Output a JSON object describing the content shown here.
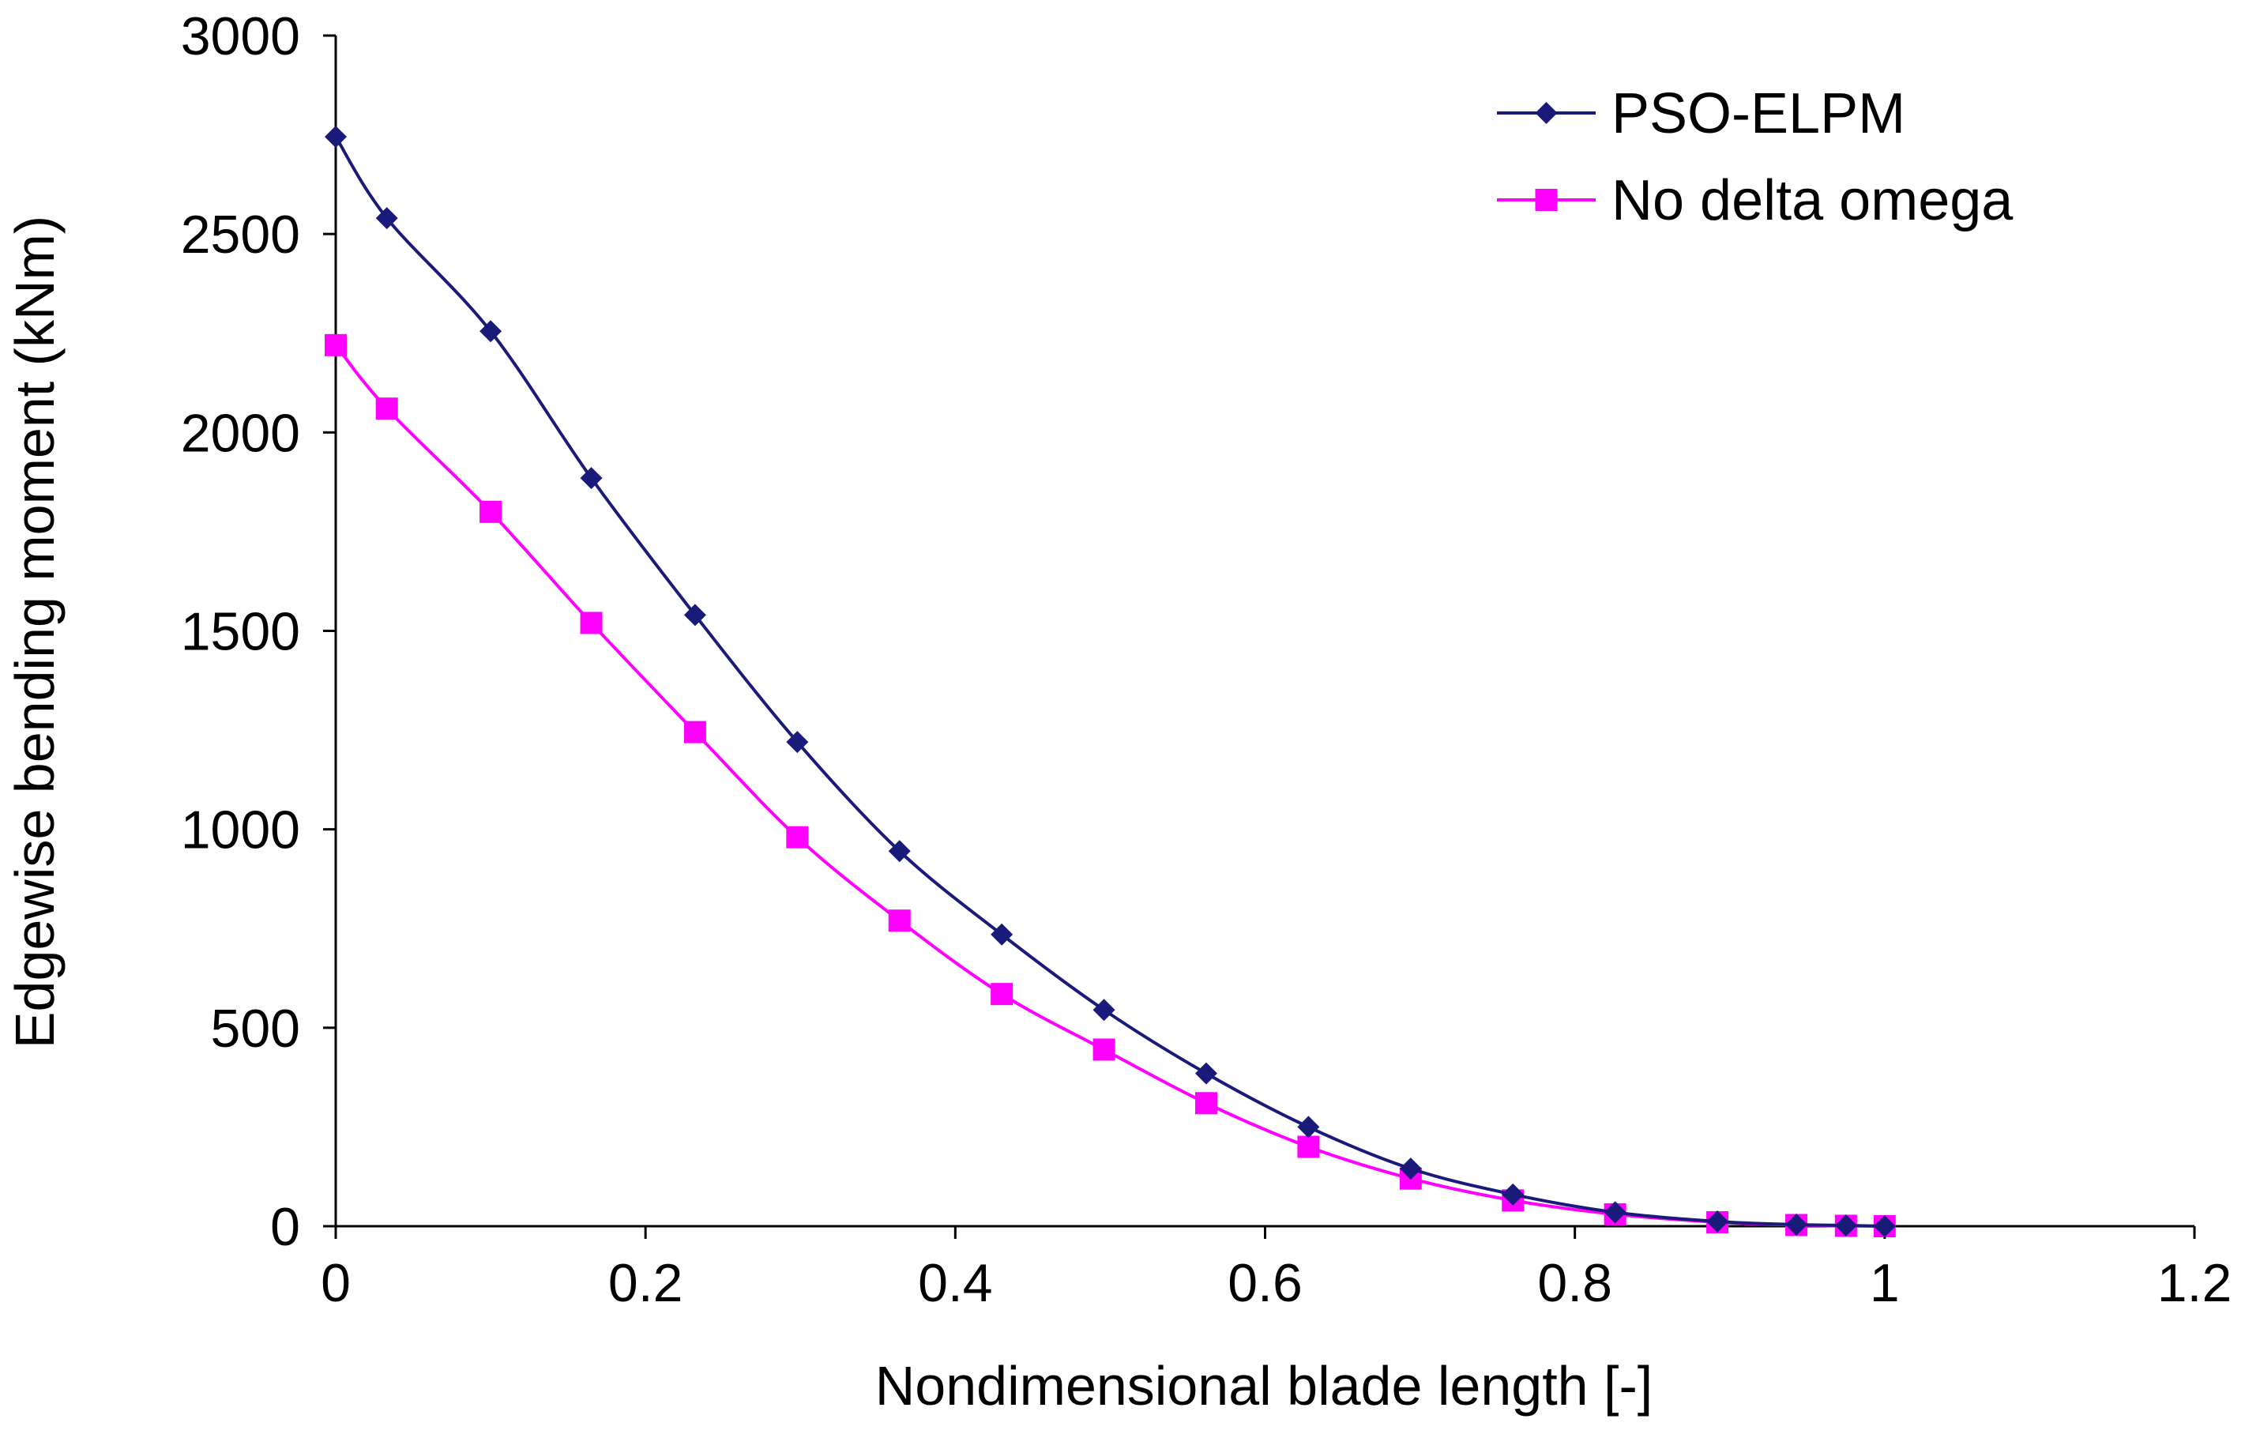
{
  "chart_data": {
    "type": "line",
    "title": "",
    "xlabel": "Nondimensional blade length [-]",
    "ylabel": "Edgewise bending moment (kNm)",
    "xlim": [
      0,
      1.2
    ],
    "ylim": [
      0,
      3000
    ],
    "xticks": [
      0,
      0.2,
      0.4,
      0.6,
      0.8,
      1,
      1.2
    ],
    "xtick_labels": [
      "0",
      "0.2",
      "0.4",
      "0.6",
      "0.8",
      "1",
      "1.2"
    ],
    "yticks": [
      0,
      500,
      1000,
      1500,
      2000,
      2500,
      3000
    ],
    "ytick_labels": [
      "0",
      "500",
      "1000",
      "1500",
      "2000",
      "2500",
      "3000"
    ],
    "grid": false,
    "legend_position": "top-right",
    "series": [
      {
        "name": "PSO-ELPM",
        "color": "#1a1a7a",
        "marker": "diamond",
        "x": [
          0,
          0.033,
          0.1,
          0.165,
          0.232,
          0.298,
          0.364,
          0.43,
          0.496,
          0.562,
          0.628,
          0.694,
          0.76,
          0.826,
          0.892,
          0.943,
          0.975,
          1.0
        ],
        "y": [
          2745,
          2540,
          2255,
          1885,
          1540,
          1220,
          945,
          735,
          545,
          385,
          250,
          145,
          80,
          35,
          12,
          4,
          2,
          0
        ]
      },
      {
        "name": "No delta omega",
        "color": "#ff00ff",
        "marker": "square",
        "x": [
          0,
          0.033,
          0.1,
          0.165,
          0.232,
          0.298,
          0.364,
          0.43,
          0.496,
          0.562,
          0.628,
          0.694,
          0.76,
          0.826,
          0.892,
          0.943,
          0.975,
          1.0
        ],
        "y": [
          2220,
          2060,
          1800,
          1520,
          1245,
          980,
          770,
          585,
          445,
          310,
          200,
          120,
          65,
          30,
          10,
          3,
          1,
          0
        ]
      }
    ]
  }
}
